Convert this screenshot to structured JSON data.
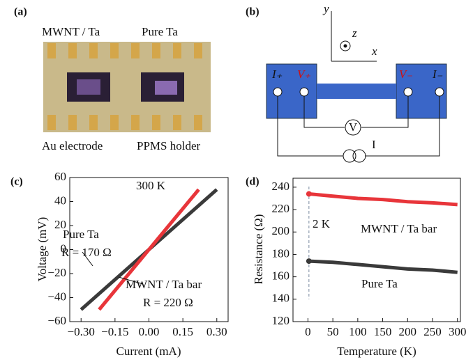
{
  "panel_a": {
    "label": "(a)",
    "sample_left": "MWNT / Ta",
    "sample_right": "Pure Ta",
    "caption_left": "Au electrode",
    "caption_right": "PPMS holder"
  },
  "panel_b": {
    "label": "(b)",
    "axis_y": "y",
    "axis_z": "z",
    "axis_x": "x",
    "i_plus": "I₊",
    "v_plus": "V₊",
    "v_minus": "V₋",
    "i_minus": "I₋",
    "voltmeter": "V",
    "current": "I"
  },
  "chart_data": [
    {
      "type": "line",
      "panel": "(c)",
      "xlabel": "Current (mA)",
      "ylabel": "Voltage (mV)",
      "annotations": [
        "300 K",
        "Pure Ta",
        "R = 170 Ω",
        "MWNT / Ta bar",
        "R = 220 Ω"
      ],
      "xlim": [
        -0.35,
        0.35
      ],
      "xticks": [
        {
          "value": -0.3,
          "label": "−0.30"
        },
        {
          "value": -0.15,
          "label": "−0.15"
        },
        {
          "value": 0,
          "label": "0.00"
        },
        {
          "value": 0.15,
          "label": "0.15"
        },
        {
          "value": 0.3,
          "label": "0.30"
        }
      ],
      "ylim": [
        -60,
        60
      ],
      "yticks": [
        {
          "value": -60,
          "label": "−60"
        },
        {
          "value": -40,
          "label": "−40"
        },
        {
          "value": -20,
          "label": "−20"
        },
        0,
        20,
        40,
        60
      ],
      "series": [
        {
          "name": "Pure Ta",
          "color": "#3a3a3a",
          "x": [
            -0.3,
            0.3
          ],
          "values": [
            -50,
            50
          ]
        },
        {
          "name": "MWNT / Ta bar",
          "color": "#e8353a",
          "x": [
            -0.22,
            0.22
          ],
          "values": [
            -50,
            50
          ]
        }
      ]
    },
    {
      "type": "line",
      "panel": "(d)",
      "xlabel": "Temperature (K)",
      "ylabel": "Resistance (Ω)",
      "annotations": [
        "2 K",
        "MWNT / Ta bar",
        "Pure Ta"
      ],
      "xlim": [
        -30,
        306
      ],
      "xticks": [
        0,
        50,
        100,
        150,
        200,
        250,
        300
      ],
      "ylim": [
        120,
        248
      ],
      "yticks": [
        120,
        140,
        160,
        180,
        200,
        220,
        240
      ],
      "series": [
        {
          "name": "MWNT / Ta bar",
          "color": "#e8353a",
          "x": [
            2,
            50,
            100,
            150,
            200,
            250,
            300
          ],
          "values": [
            234,
            232,
            230,
            229,
            227,
            226,
            224.5
          ]
        },
        {
          "name": "Pure Ta",
          "color": "#3a3a3a",
          "x": [
            2,
            50,
            100,
            150,
            200,
            250,
            300
          ],
          "values": [
            174,
            173,
            171,
            169,
            167,
            166,
            164
          ]
        }
      ]
    }
  ]
}
